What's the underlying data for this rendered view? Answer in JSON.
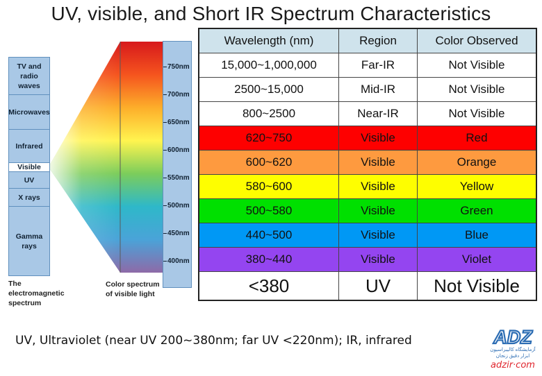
{
  "title": "UV, visible, and Short IR Spectrum Characteristics",
  "em_spectrum": {
    "bands": [
      "TV and radio waves",
      "Microwaves",
      "Infrared",
      "Visible",
      "UV",
      "X rays",
      "Gamma rays"
    ],
    "caption_lines": [
      "The",
      "electromagnetic",
      "spectrum"
    ]
  },
  "color_spectrum": {
    "caption_lines": [
      "Color spectrum",
      "of visible light"
    ],
    "scale_labels": [
      "750nm",
      "700nm",
      "650nm",
      "600nm",
      "550nm",
      "500nm",
      "450nm",
      "400nm"
    ],
    "colors": [
      "#d7191c",
      "#f5541e",
      "#fdae2a",
      "#fff44f",
      "#7ccd5b",
      "#2eb8c9",
      "#4aa3d8",
      "#8e6aa8"
    ]
  },
  "table": {
    "headers": [
      "Wavelength (nm)",
      "Region",
      "Color Observed"
    ],
    "rows": [
      {
        "wavelength": "15,000~1,000,000",
        "region": "Far-IR",
        "color": "Not Visible",
        "bg": "#ffffff"
      },
      {
        "wavelength": "2500~15,000",
        "region": "Mid-IR",
        "color": "Not Visible",
        "bg": "#ffffff"
      },
      {
        "wavelength": "800~2500",
        "region": "Near-IR",
        "color": "Not Visible",
        "bg": "#ffffff"
      },
      {
        "wavelength": "620~750",
        "region": "Visible",
        "color": "Red",
        "bg": "#fe0000"
      },
      {
        "wavelength": "600~620",
        "region": "Visible",
        "color": "Orange",
        "bg": "#fe9a3f"
      },
      {
        "wavelength": "580~600",
        "region": "Visible",
        "color": "Yellow",
        "bg": "#fefe00"
      },
      {
        "wavelength": "500~580",
        "region": "Visible",
        "color": "Green",
        "bg": "#00e000"
      },
      {
        "wavelength": "440~500",
        "region": "Visible",
        "color": "Blue",
        "bg": "#0098f5"
      },
      {
        "wavelength": "380~440",
        "region": "Visible",
        "color": "Violet",
        "bg": "#9445f0"
      },
      {
        "wavelength": "<380",
        "region": "UV",
        "color": "Not Visible",
        "bg": "#ffffff"
      }
    ]
  },
  "footnote": "UV, Ultraviolet (near UV 200~380nm; far UV <220nm); IR, infrared",
  "logo": {
    "mark": "ADZ",
    "tagline_lines": [
      "آزمایشگاه کالیبراسیون",
      "ابزار دقیق زنجان"
    ],
    "url": "adzir·com"
  }
}
